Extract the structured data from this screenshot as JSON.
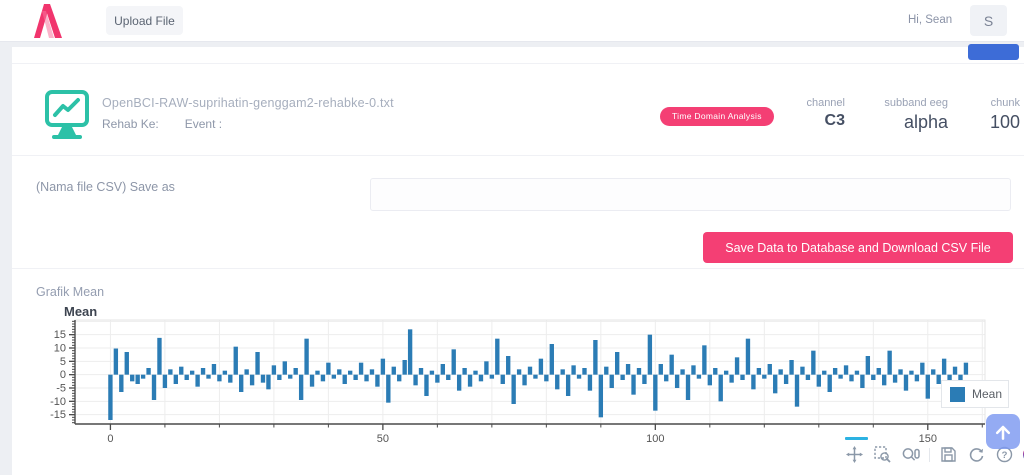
{
  "header": {
    "upload_label": "Upload File",
    "greeting": "Hi,  Sean",
    "avatar_initial": "S"
  },
  "file_card": {
    "filename": "OpenBCI-RAW-suprihatin-genggam2-rehabke-0.txt",
    "rehab_label": "Rehab Ke:",
    "event_label": "Event :",
    "badge": "Time Domain Analysis",
    "meta": [
      {
        "label": "channel",
        "value": "C3"
      },
      {
        "label": "subband eeg",
        "value": "alpha"
      },
      {
        "label": "chunk",
        "value": "100"
      }
    ]
  },
  "save_section": {
    "label": "(Nama file CSV) Save as",
    "input_value": "",
    "button_label": "Save Data to Database and Download CSV File"
  },
  "chart_section": {
    "heading": "Grafik Mean"
  },
  "chart_data": {
    "type": "bar",
    "title": "Mean",
    "legend": [
      "Mean"
    ],
    "bar_color": "#2b7cb5",
    "xlabel": "",
    "ylabel": "",
    "xlim": [
      -6.5,
      160.5
    ],
    "ylim": [
      -18.5,
      20.5
    ],
    "x_ticks": [
      0,
      50,
      100,
      150
    ],
    "y_ticks": [
      -15,
      -10,
      -5,
      0,
      5,
      10,
      15
    ],
    "x_minor_step": 10,
    "y_minor_step": 1,
    "grid": true,
    "legend_position": "top-right",
    "x_start": 0,
    "x_step": 1,
    "values": [
      -17,
      9.8,
      -6.5,
      8.5,
      -2.5,
      -3.5,
      -1.5,
      2.5,
      -9.5,
      13.8,
      -5,
      2,
      -3.5,
      3,
      -2,
      1.5,
      -4.5,
      2.5,
      -1.5,
      4,
      -2.5,
      1.5,
      -3,
      10.5,
      -6.5,
      2,
      -4,
      8.5,
      -3,
      -5.5,
      3.5,
      -2,
      5,
      -1.5,
      2.5,
      -9.5,
      13.5,
      -4.5,
      1.5,
      -2.5,
      4.5,
      -1.5,
      2,
      -3.5,
      1.5,
      -2,
      4.5,
      -2.5,
      2,
      -4.5,
      6,
      -10.5,
      3,
      -2.5,
      5.5,
      17,
      -4,
      2.5,
      -8,
      1.5,
      -3,
      4,
      -2,
      9.5,
      -6,
      2.5,
      -4.5,
      1.5,
      -2.5,
      5,
      -1.5,
      13.5,
      -3.5,
      7,
      -11,
      2,
      -4,
      3,
      -1.5,
      6,
      -2.5,
      11.5,
      -5.5,
      2,
      -8,
      3.5,
      -1.5,
      2.5,
      -6,
      13,
      -16,
      3,
      -5,
      8.5,
      -2,
      4,
      -7.5,
      2.5,
      -3.5,
      15,
      -13.5,
      4,
      -2.5,
      7.5,
      -5,
      2,
      -9.5,
      3.5,
      -1.5,
      11,
      -4,
      2.5,
      -10,
      1.5,
      -3,
      6.5,
      -2,
      13.5,
      -5.5,
      2.5,
      -1.5,
      4,
      -7,
      2,
      -3.5,
      5.5,
      -12,
      3,
      -2,
      9,
      -4.5,
      1.5,
      -6.5,
      2.5,
      -1.5,
      3.5,
      -2.5,
      1.5,
      -5,
      7,
      -2,
      2.5,
      -4,
      9,
      -3,
      2,
      -6,
      1.5,
      -2.5,
      4.5,
      -9,
      2,
      -3.5,
      6,
      -7,
      3,
      -2,
      4.5
    ]
  },
  "toolbar": {
    "active_tool": "pan",
    "tools": [
      "pan",
      "box-zoom",
      "wheel-zoom",
      "save",
      "reset",
      "help",
      "bokeh-logo"
    ]
  },
  "colors": {
    "brand_pink": "#f1356d",
    "badge_pink": "#f43f74",
    "teal_icon": "#2cc1a7",
    "bar_blue": "#2b7cb5",
    "partial_button_blue": "#3d6cd7",
    "scroll_button_blue": "#7c99f0"
  }
}
